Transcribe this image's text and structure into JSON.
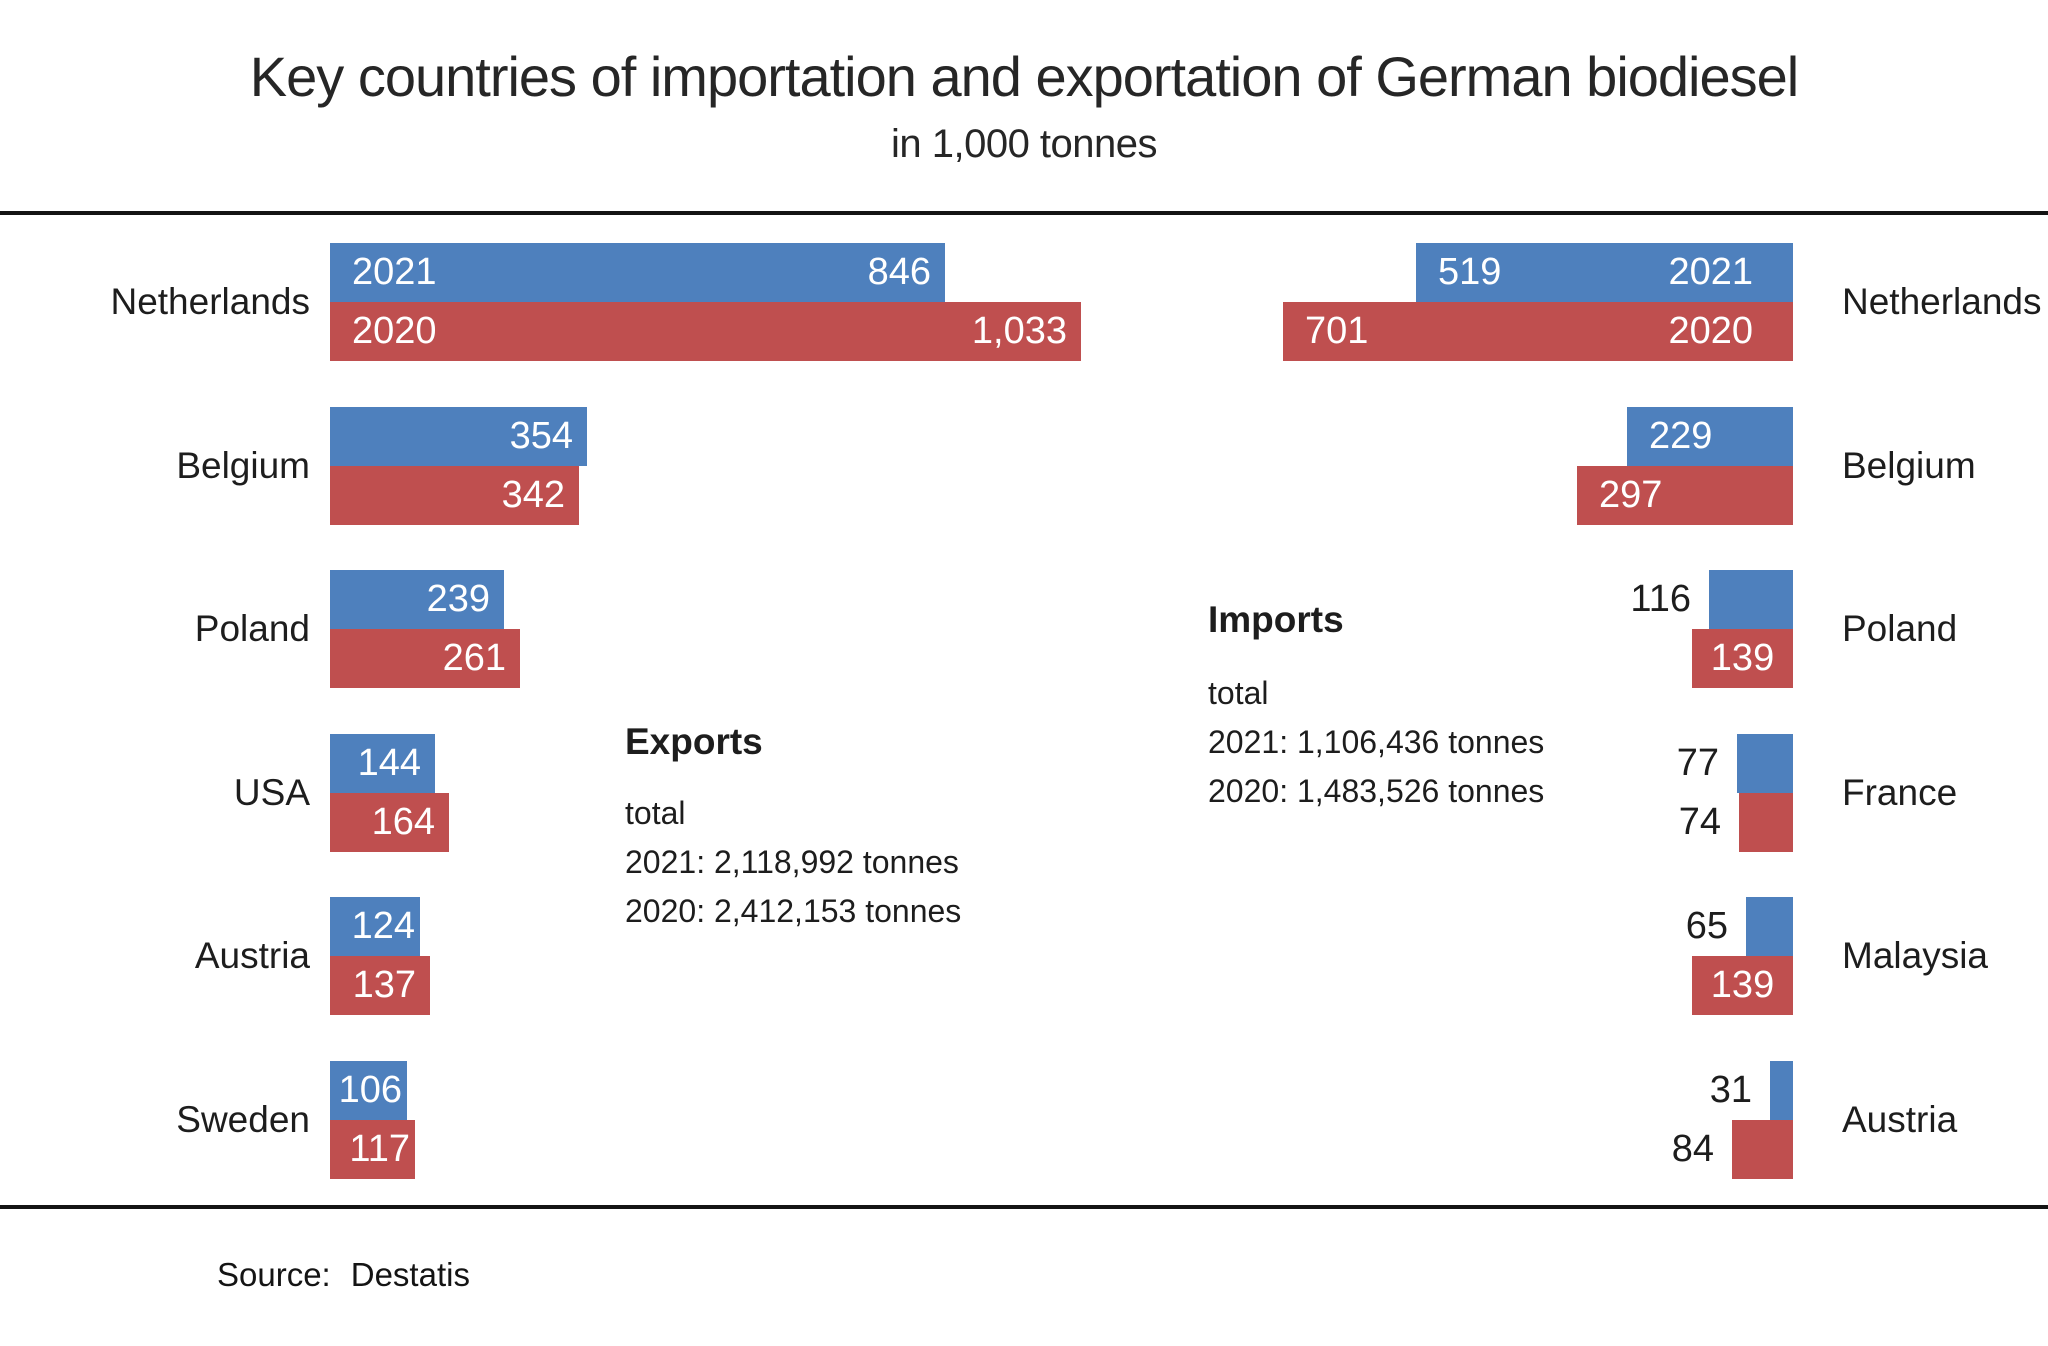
{
  "title": "Key countries of importation and exportation of German biodiesel",
  "subtitle": "in 1,000 tonnes",
  "source": {
    "label": "Source:",
    "value": "Destatis"
  },
  "colors": {
    "blue_2021": "#4e80bd",
    "red_2020": "#bf4f4f",
    "text": "#1d1d1d",
    "rule": "#141414",
    "bar_label": "#ffffff"
  },
  "exports_block": {
    "heading": "Exports",
    "lines": [
      "total",
      "2021: 2,118,992 tonnes",
      "2020: 2,412,153 tonnes"
    ]
  },
  "imports_block": {
    "heading": "Imports",
    "lines": [
      "total",
      "2021: 1,106,436 tonnes",
      "2020: 1,483,526 tonnes"
    ]
  },
  "chart_data": [
    {
      "type": "bar",
      "name": "exports",
      "side": "left",
      "orientation": "horizontal",
      "unit": "1,000 tonnes",
      "legend_series": [
        {
          "name": "2021",
          "color": "#4e80bd"
        },
        {
          "name": "2020",
          "color": "#bf4f4f"
        }
      ],
      "categories": [
        "Netherlands",
        "Belgium",
        "Poland",
        "USA",
        "Austria",
        "Sweden"
      ],
      "rows": [
        {
          "country": "Netherlands",
          "y2021": 846,
          "y2020": 1033,
          "label_2021": "846",
          "label_2020": "1,033"
        },
        {
          "country": "Belgium",
          "y2021": 354,
          "y2020": 342,
          "label_2021": "354",
          "label_2020": "342"
        },
        {
          "country": "Poland",
          "y2021": 239,
          "y2020": 261,
          "label_2021": "239",
          "label_2020": "261"
        },
        {
          "country": "USA",
          "y2021": 144,
          "y2020": 164,
          "label_2021": "144",
          "label_2020": "164"
        },
        {
          "country": "Austria",
          "y2021": 124,
          "y2020": 137,
          "label_2021": "124",
          "label_2020": "137"
        },
        {
          "country": "Sweden",
          "y2021": 106,
          "y2020": 117,
          "label_2021": "106",
          "label_2020": "117"
        }
      ],
      "totals": {
        "total_2021_tonnes": 2118992,
        "total_2020_tonnes": 2412153
      }
    },
    {
      "type": "bar",
      "name": "imports",
      "side": "right",
      "orientation": "horizontal",
      "unit": "1,000 tonnes",
      "legend_series": [
        {
          "name": "2021",
          "color": "#4e80bd"
        },
        {
          "name": "2020",
          "color": "#bf4f4f"
        }
      ],
      "categories": [
        "Netherlands",
        "Belgium",
        "Poland",
        "France",
        "Malaysia",
        "Austria"
      ],
      "rows": [
        {
          "country": "Netherlands",
          "y2021": 519,
          "y2020": 701,
          "label_2021": "519",
          "label_2020": "701"
        },
        {
          "country": "Belgium",
          "y2021": 229,
          "y2020": 297,
          "label_2021": "229",
          "label_2020": "297"
        },
        {
          "country": "Poland",
          "y2021": 116,
          "y2020": 139,
          "label_2021": "116",
          "label_2020": "139"
        },
        {
          "country": "France",
          "y2021": 77,
          "y2020": 74,
          "label_2021": "77",
          "label_2020": "74"
        },
        {
          "country": "Malaysia",
          "y2021": 65,
          "y2020": 139,
          "label_2021": "65",
          "label_2020": "139"
        },
        {
          "country": "Austria",
          "y2021": 31,
          "y2020": 84,
          "label_2021": "31",
          "label_2020": "84"
        }
      ],
      "totals": {
        "total_2021_tonnes": 1106436,
        "total_2020_tonnes": 1483526
      }
    }
  ]
}
